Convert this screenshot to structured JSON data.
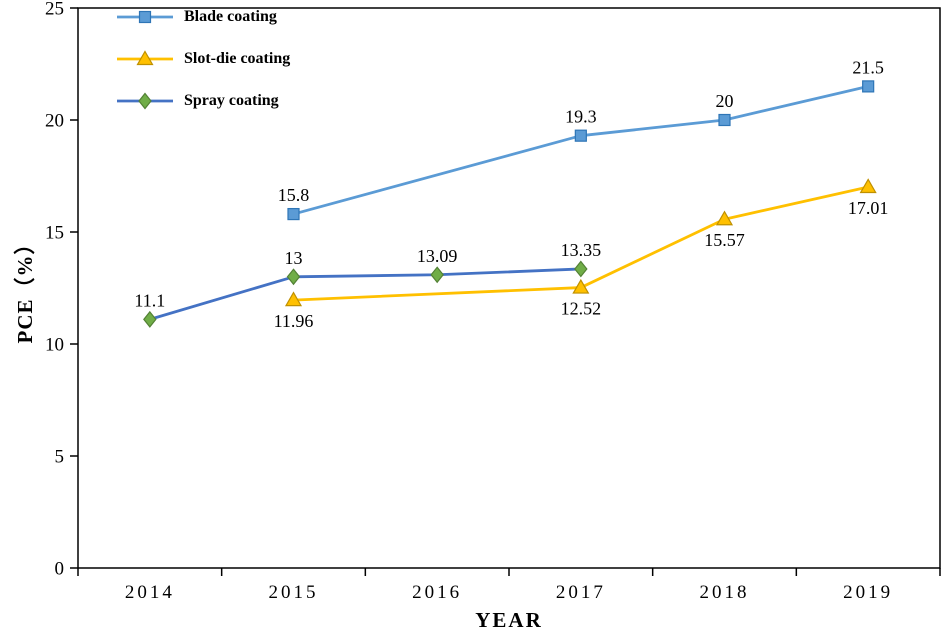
{
  "chart_data": {
    "type": "line",
    "title": "",
    "xlabel": "YEAR",
    "ylabel": "PCE（%）",
    "ylim": [
      0,
      25
    ],
    "yticks": [
      0,
      5,
      10,
      15,
      20,
      25
    ],
    "categories": [
      "2014",
      "2015",
      "2016",
      "2017",
      "2018",
      "2019"
    ],
    "grid": false,
    "legend_position": "top-left",
    "series": [
      {
        "name": "Blade coating",
        "line_color": "#5B9BD5",
        "marker": "square",
        "marker_fill": "#5B9BD5",
        "marker_stroke": "#2E75B6",
        "points": [
          {
            "x": "2015",
            "y": 15.8,
            "label": "15.8",
            "label_pos": "above"
          },
          {
            "x": "2017",
            "y": 19.3,
            "label": "19.3",
            "label_pos": "above"
          },
          {
            "x": "2018",
            "y": 20,
            "label": "20",
            "label_pos": "above"
          },
          {
            "x": "2019",
            "y": 21.5,
            "label": "21.5",
            "label_pos": "above"
          }
        ]
      },
      {
        "name": "Slot-die coating",
        "line_color": "#FFC000",
        "marker": "triangle",
        "marker_fill": "#FFC000",
        "marker_stroke": "#BF9000",
        "points": [
          {
            "x": "2015",
            "y": 11.96,
            "label": "11.96",
            "label_pos": "below"
          },
          {
            "x": "2017",
            "y": 12.52,
            "label": "12.52",
            "label_pos": "below"
          },
          {
            "x": "2018",
            "y": 15.57,
            "label": "15.57",
            "label_pos": "below"
          },
          {
            "x": "2019",
            "y": 17.01,
            "label": "17.01",
            "label_pos": "below"
          }
        ]
      },
      {
        "name": "Spray coating",
        "line_color": "#4472C4",
        "marker": "diamond",
        "marker_fill": "#70AD47",
        "marker_stroke": "#538135",
        "points": [
          {
            "x": "2014",
            "y": 11.1,
            "label": "11.1",
            "label_pos": "above"
          },
          {
            "x": "2015",
            "y": 13,
            "label": "13",
            "label_pos": "above"
          },
          {
            "x": "2016",
            "y": 13.09,
            "label": "13.09",
            "label_pos": "above"
          },
          {
            "x": "2017",
            "y": 13.35,
            "label": "13.35",
            "label_pos": "above"
          }
        ]
      }
    ]
  }
}
